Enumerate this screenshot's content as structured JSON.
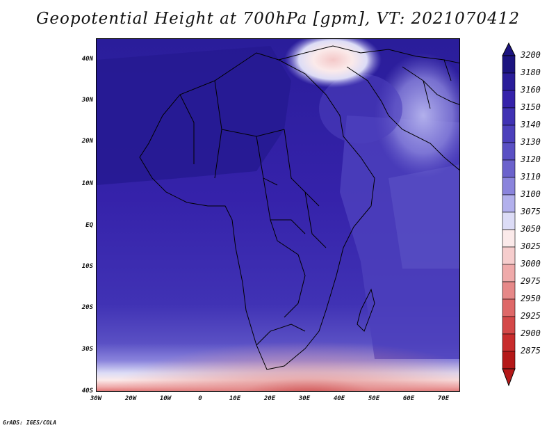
{
  "title": "Geopotential Height at 700hPa [gpm], VT: 2021070412",
  "credit": "GrADS: IGES/COLA",
  "lat_labels": [
    "40N",
    "30N",
    "20N",
    "10N",
    "EQ",
    "10S",
    "20S",
    "30S",
    "40S"
  ],
  "lon_labels": [
    "30W",
    "20W",
    "10W",
    "0",
    "10E",
    "20E",
    "30E",
    "40E",
    "50E",
    "60E",
    "70E"
  ],
  "colorbar": {
    "levels": [
      "3200",
      "3180",
      "3160",
      "3150",
      "3140",
      "3130",
      "3120",
      "3110",
      "3100",
      "3075",
      "3050",
      "3025",
      "3000",
      "2975",
      "2950",
      "2925",
      "2900",
      "2875"
    ],
    "colors": [
      "#1c1480",
      "#2a1d9a",
      "#3522aa",
      "#4032b4",
      "#4c40bc",
      "#5a50c4",
      "#6b62cc",
      "#8a84dc",
      "#b2b0ec",
      "#dcdcf6",
      "#fbeaea",
      "#f6cdcd",
      "#efaaaa",
      "#e68888",
      "#de6868",
      "#d44848",
      "#c82c2c",
      "#b41818"
    ]
  }
}
